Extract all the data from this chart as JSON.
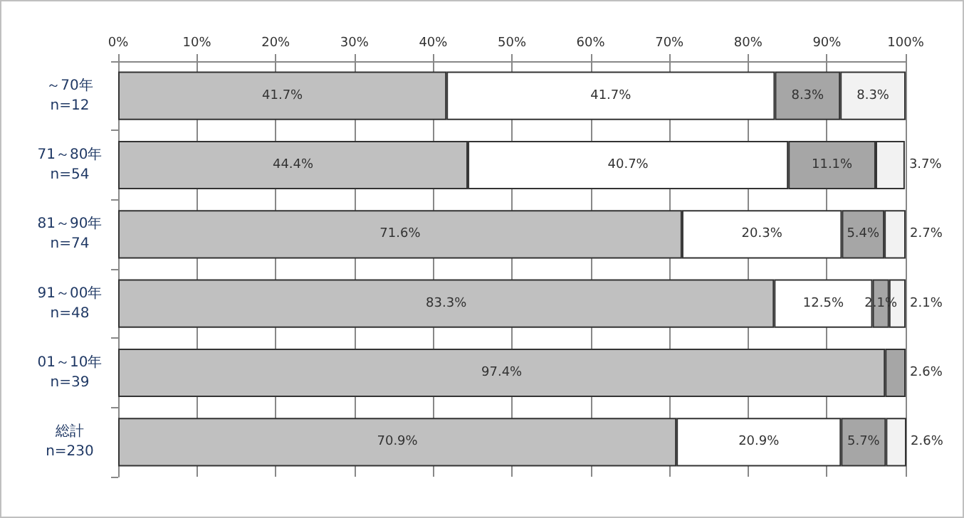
{
  "chart_data": {
    "type": "bar",
    "orientation": "horizontal",
    "stacked": true,
    "categories": [
      "～70年\nn=12",
      "71～80年\nn=54",
      "81～90年\nn=74",
      "91～00年\nn=48",
      "01～10年\nn=39",
      "総計\nn=230"
    ],
    "series": [
      {
        "color": "#c0c0c0",
        "values": [
          41.7,
          44.4,
          71.6,
          83.3,
          97.4,
          70.9
        ],
        "value_labels": [
          "41.7%",
          "44.4%",
          "71.6%",
          "83.3%",
          "97.4%",
          "70.9%"
        ]
      },
      {
        "color": "#ffffff",
        "values": [
          41.7,
          40.7,
          20.3,
          12.5,
          null,
          20.9
        ],
        "value_labels": [
          "41.7%",
          "40.7%",
          "20.3%",
          "12.5%",
          null,
          "20.9%"
        ]
      },
      {
        "color": "#a6a6a6",
        "values": [
          8.3,
          11.1,
          5.4,
          2.1,
          2.6,
          5.7
        ],
        "value_labels": [
          "8.3%",
          "11.1%",
          "5.4%",
          "2.1%",
          "2.6%",
          "5.7%"
        ]
      },
      {
        "color": "#f2f2f2",
        "values": [
          8.3,
          3.7,
          2.7,
          2.1,
          null,
          2.6
        ],
        "value_labels": [
          "8.3%",
          "3.7%",
          "2.7%",
          "2.1%",
          null,
          "2.6%"
        ]
      }
    ],
    "xlim": [
      0,
      100
    ],
    "xticks": [
      {
        "value": 0,
        "label": "0%"
      },
      {
        "value": 10,
        "label": "10%"
      },
      {
        "value": 20,
        "label": "20%"
      },
      {
        "value": 30,
        "label": "30%"
      },
      {
        "value": 40,
        "label": "40%"
      },
      {
        "value": 50,
        "label": "50%"
      },
      {
        "value": 60,
        "label": "60%"
      },
      {
        "value": 70,
        "label": "70%"
      },
      {
        "value": 80,
        "label": "80%"
      },
      {
        "value": 90,
        "label": "90%"
      },
      {
        "value": 100,
        "label": "100%"
      }
    ],
    "grid": "x"
  }
}
